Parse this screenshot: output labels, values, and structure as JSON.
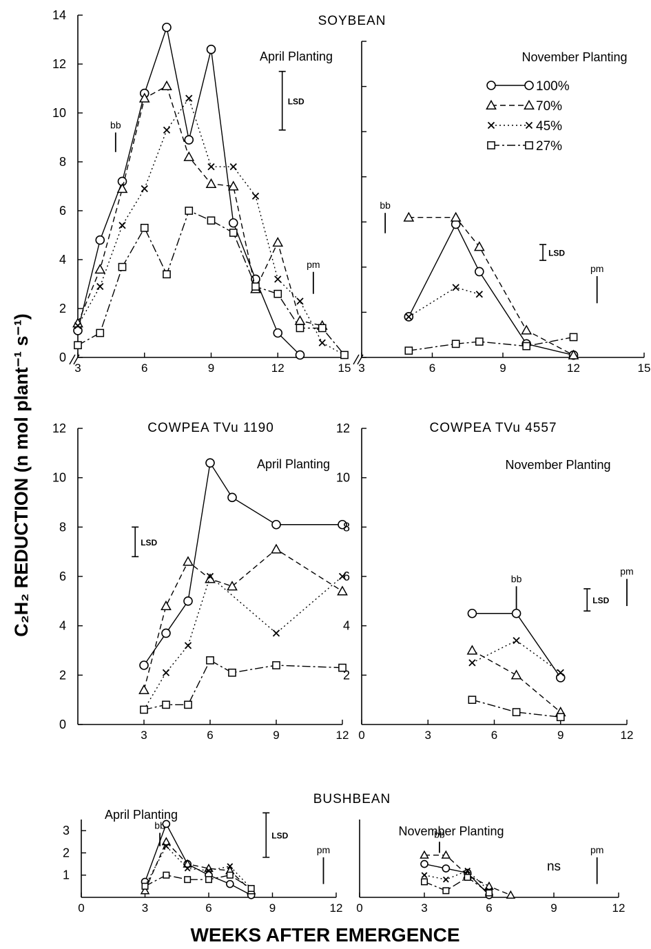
{
  "y_axis_label": "C₂H₂ REDUCTION (n mol plant⁻¹ s⁻¹)",
  "x_axis_label": "WEEKS AFTER EMERGENCE",
  "legend": {
    "entries": [
      {
        "label": "100%",
        "marker": "circle",
        "dash": "solid"
      },
      {
        "label": "70%",
        "marker": "triangle",
        "dash": "dashed"
      },
      {
        "label": "45%",
        "marker": "cross",
        "dash": "dotted"
      },
      {
        "label": "27%",
        "marker": "square",
        "dash": "dashdot"
      }
    ]
  },
  "chart_data": [
    {
      "type": "line",
      "id": "soy-april",
      "group_title": "SOYBEAN",
      "subtitle": "April Planting",
      "xlim": [
        3,
        15
      ],
      "ylim": [
        0,
        14
      ],
      "xticks": [
        3,
        6,
        9,
        12,
        15
      ],
      "yticks": [
        0,
        2,
        4,
        6,
        8,
        10,
        12,
        14
      ],
      "lsd": {
        "label": "LSD",
        "x": 12.2,
        "y1": 9.3,
        "y2": 11.7
      },
      "stage_markers": [
        {
          "label": "bb",
          "x": 4.7,
          "y1": 8.4,
          "y2": 9.2
        },
        {
          "label": "pm",
          "x": 13.6,
          "y1": 2.6,
          "y2": 3.5
        }
      ],
      "series": [
        {
          "name": "100%",
          "x": [
            3,
            4,
            5,
            6,
            7,
            8,
            9,
            10,
            11,
            12,
            13
          ],
          "y": [
            1.1,
            4.8,
            7.2,
            10.8,
            13.5,
            8.9,
            12.6,
            5.5,
            3.2,
            1.0,
            0.1
          ]
        },
        {
          "name": "70%",
          "x": [
            3,
            4,
            5,
            6,
            7,
            8,
            9,
            10,
            11,
            12,
            13,
            14
          ],
          "y": [
            1.4,
            3.6,
            6.9,
            10.6,
            11.1,
            8.2,
            7.1,
            7.0,
            2.8,
            4.7,
            1.5,
            1.3
          ]
        },
        {
          "name": "45%",
          "x": [
            3,
            4,
            5,
            6,
            7,
            8,
            9,
            10,
            11,
            12,
            13,
            14,
            15
          ],
          "y": [
            1.3,
            2.9,
            5.4,
            6.9,
            9.3,
            10.6,
            7.8,
            7.8,
            6.6,
            3.2,
            2.3,
            0.6,
            0.1
          ]
        },
        {
          "name": "27%",
          "x": [
            3,
            4,
            5,
            6,
            7,
            8,
            9,
            10,
            11,
            12,
            13,
            14,
            15
          ],
          "y": [
            0.5,
            1.0,
            3.7,
            5.3,
            3.4,
            6.0,
            5.6,
            5.1,
            2.9,
            2.6,
            1.2,
            1.2,
            0.1
          ]
        }
      ]
    },
    {
      "type": "line",
      "id": "soy-nov",
      "group_title": "",
      "subtitle": "November Planting",
      "xlim": [
        3,
        15
      ],
      "ylim": [
        0,
        14
      ],
      "xticks": [
        3,
        6,
        9,
        12,
        15
      ],
      "yticks": [
        0,
        2,
        4,
        6,
        8,
        10,
        12,
        14
      ],
      "lsd": {
        "label": "LSD",
        "x": 10.7,
        "y1": 4.3,
        "y2": 5.0
      },
      "stage_markers": [
        {
          "label": "bb",
          "x": 4.0,
          "y1": 5.5,
          "y2": 6.4
        },
        {
          "label": "pm",
          "x": 13.0,
          "y1": 2.4,
          "y2": 3.6
        }
      ],
      "series": [
        {
          "name": "100%",
          "x": [
            5,
            7,
            8,
            10,
            12
          ],
          "y": [
            1.8,
            5.9,
            3.8,
            0.6,
            0.1
          ]
        },
        {
          "name": "70%",
          "x": [
            5,
            7,
            8,
            10,
            12
          ],
          "y": [
            6.2,
            6.2,
            4.9,
            1.2,
            0.1
          ]
        },
        {
          "name": "45%",
          "x": [
            5,
            7,
            8
          ],
          "y": [
            1.8,
            3.1,
            2.8
          ]
        },
        {
          "name": "27%",
          "x": [
            5,
            7,
            8,
            10,
            12
          ],
          "y": [
            0.3,
            0.6,
            0.7,
            0.5,
            0.9
          ]
        }
      ]
    },
    {
      "type": "line",
      "id": "cow-april",
      "group_title": "COWPEA TVu 1190",
      "subtitle": "April Planting",
      "xlim": [
        0,
        12
      ],
      "ylim": [
        0,
        12
      ],
      "xticks": [
        3,
        6,
        9,
        12
      ],
      "yticks": [
        0,
        2,
        4,
        6,
        8,
        10,
        12
      ],
      "lsd": {
        "label": "LSD",
        "x": 2.6,
        "y1": 6.8,
        "y2": 8.0
      },
      "stage_markers": [],
      "series": [
        {
          "name": "100%",
          "x": [
            3,
            4,
            5,
            6,
            7,
            9,
            12
          ],
          "y": [
            2.4,
            3.7,
            5.0,
            10.6,
            9.2,
            8.1,
            8.1
          ]
        },
        {
          "name": "70%",
          "x": [
            3,
            4,
            5,
            6,
            7,
            9,
            12
          ],
          "y": [
            1.4,
            4.8,
            6.6,
            5.9,
            5.6,
            7.1,
            5.4
          ]
        },
        {
          "name": "45%",
          "x": [
            3,
            4,
            5,
            6,
            9,
            12
          ],
          "y": [
            0.6,
            2.1,
            3.2,
            6.0,
            3.7,
            6.0
          ]
        },
        {
          "name": "27%",
          "x": [
            3,
            4,
            5,
            6,
            7,
            9,
            12
          ],
          "y": [
            0.6,
            0.8,
            0.8,
            2.6,
            2.1,
            2.4,
            2.3
          ]
        }
      ]
    },
    {
      "type": "line",
      "id": "cow-nov",
      "group_title": "COWPEA TVu 4557",
      "subtitle": "November Planting",
      "xlim": [
        0,
        12
      ],
      "ylim": [
        0,
        12
      ],
      "xticks": [
        0,
        3,
        6,
        9,
        12
      ],
      "yticks": [
        2,
        4,
        6,
        8,
        10,
        12
      ],
      "lsd": {
        "label": "LSD",
        "x": 10.2,
        "y1": 4.6,
        "y2": 5.5
      },
      "stage_markers": [
        {
          "label": "bb",
          "x": 7.0,
          "y1": 4.6,
          "y2": 5.6
        },
        {
          "label": "pm",
          "x": 12.0,
          "y1": 4.8,
          "y2": 5.9
        }
      ],
      "series": [
        {
          "name": "100%",
          "x": [
            5,
            7,
            9
          ],
          "y": [
            4.5,
            4.5,
            1.9
          ]
        },
        {
          "name": "70%",
          "x": [
            5,
            7,
            9
          ],
          "y": [
            3.0,
            2.0,
            0.5
          ]
        },
        {
          "name": "45%",
          "x": [
            5,
            7,
            9
          ],
          "y": [
            2.5,
            3.4,
            2.1
          ]
        },
        {
          "name": "27%",
          "x": [
            5,
            7,
            9
          ],
          "y": [
            1.0,
            0.5,
            0.3
          ]
        }
      ]
    },
    {
      "type": "line",
      "id": "bush-april",
      "group_title": "BUSHBEAN",
      "subtitle": "April Planting",
      "xlim": [
        0,
        12
      ],
      "ylim": [
        0,
        3.5
      ],
      "xticks": [
        0,
        3,
        6,
        9,
        12
      ],
      "yticks": [
        1,
        2,
        3
      ],
      "lsd": {
        "label": "LSD",
        "x": 8.7,
        "y1": 1.8,
        "y2": 3.8
      },
      "stage_markers": [
        {
          "label": "bb",
          "x": 3.7,
          "y1": 2.3,
          "y2": 2.9
        },
        {
          "label": "pm",
          "x": 11.4,
          "y1": 0.6,
          "y2": 1.8
        }
      ],
      "series": [
        {
          "name": "100%",
          "x": [
            3,
            4,
            5,
            6,
            7,
            8
          ],
          "y": [
            0.7,
            3.3,
            1.5,
            1.0,
            0.6,
            0.1
          ]
        },
        {
          "name": "70%",
          "x": [
            3,
            4,
            5,
            6,
            7,
            8
          ],
          "y": [
            0.3,
            2.5,
            1.5,
            1.3,
            1.2,
            0.3
          ]
        },
        {
          "name": "45%",
          "x": [
            3,
            4,
            5,
            6,
            7,
            8
          ],
          "y": [
            0.5,
            2.3,
            1.3,
            1.2,
            1.4,
            0.4
          ]
        },
        {
          "name": "27%",
          "x": [
            3,
            4,
            5,
            6,
            7,
            8
          ],
          "y": [
            0.5,
            1.0,
            0.8,
            0.8,
            1.0,
            0.4
          ]
        }
      ]
    },
    {
      "type": "line",
      "id": "bush-nov",
      "group_title": "",
      "subtitle": "November Planting",
      "xlim": [
        0,
        12
      ],
      "ylim": [
        0,
        3.5
      ],
      "xticks": [
        0,
        3,
        6,
        9,
        12
      ],
      "yticks": [],
      "lsd": {
        "label": "ns",
        "x": 9.0
      },
      "stage_markers": [
        {
          "label": "bb",
          "x": 3.7,
          "y1": 2.0,
          "y2": 2.5
        },
        {
          "label": "pm",
          "x": 11.0,
          "y1": 0.6,
          "y2": 1.8
        }
      ],
      "series": [
        {
          "name": "100%",
          "x": [
            3,
            4,
            5,
            6
          ],
          "y": [
            1.5,
            1.3,
            1.1,
            0.1
          ]
        },
        {
          "name": "70%",
          "x": [
            3,
            4,
            5,
            6,
            7
          ],
          "y": [
            1.9,
            1.9,
            1.0,
            0.5,
            0.1
          ]
        },
        {
          "name": "45%",
          "x": [
            3,
            4,
            5,
            6
          ],
          "y": [
            1.0,
            0.8,
            1.2,
            0.3
          ]
        },
        {
          "name": "27%",
          "x": [
            3,
            4,
            5,
            6
          ],
          "y": [
            0.7,
            0.3,
            0.9,
            0.2
          ]
        }
      ]
    }
  ]
}
